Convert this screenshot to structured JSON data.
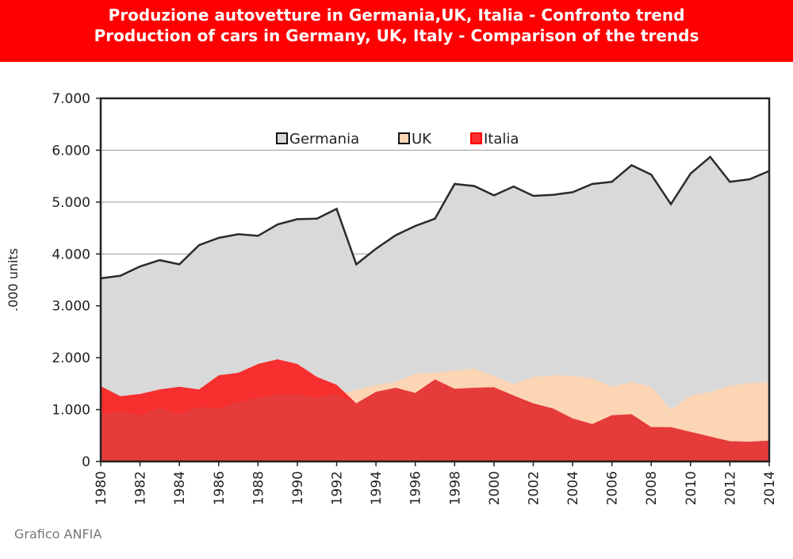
{
  "header": {
    "title_it": "Produzione autovetture in Germania,UK, Italia - Confronto trend",
    "title_en": "Production of cars in Germany, UK, Italy - Comparison of the  trends"
  },
  "footer": {
    "source": "Grafico ANFIA"
  },
  "colors": {
    "banner": "#fe0000",
    "germania": "#d9d9d9",
    "uk": "#fcd5b5",
    "italia": "#f72f2f",
    "italia_overlap": "#e53b3b",
    "line": "#2b2b2b"
  },
  "chart_data": {
    "type": "area",
    "title": "",
    "xlabel": "",
    "ylabel": ".000 units",
    "ylim": [
      0,
      7000
    ],
    "yticks": [
      0,
      1000,
      2000,
      3000,
      4000,
      5000,
      6000,
      7000
    ],
    "ytick_labels": [
      "0",
      "1.000",
      "2.000",
      "3.000",
      "4.000",
      "5.000",
      "6.000",
      "7.000"
    ],
    "xlim": [
      1980,
      2014
    ],
    "xticks": [
      1980,
      1982,
      1984,
      1986,
      1988,
      1990,
      1992,
      1994,
      1996,
      1998,
      2000,
      2002,
      2004,
      2006,
      2008,
      2010,
      2012,
      2014
    ],
    "grid": true,
    "legend_position": "top-center",
    "x": [
      1980,
      1981,
      1982,
      1983,
      1984,
      1985,
      1986,
      1987,
      1988,
      1989,
      1990,
      1991,
      1992,
      1993,
      1994,
      1995,
      1996,
      1997,
      1998,
      1999,
      2000,
      2001,
      2002,
      2003,
      2004,
      2005,
      2006,
      2007,
      2008,
      2009,
      2010,
      2011,
      2012,
      2013,
      2014
    ],
    "series": [
      {
        "name": "Germania",
        "values": [
          3530,
          3580,
          3760,
          3880,
          3800,
          4170,
          4310,
          4380,
          4350,
          4570,
          4670,
          4680,
          4870,
          3800,
          4100,
          4360,
          4540,
          4680,
          5350,
          5310,
          5130,
          5300,
          5120,
          5140,
          5190,
          5350,
          5390,
          5710,
          5530,
          4960,
          5550,
          5870,
          5390,
          5440,
          5600
        ]
      },
      {
        "name": "UK",
        "values": [
          920,
          960,
          890,
          1040,
          910,
          1050,
          1020,
          1140,
          1230,
          1300,
          1300,
          1240,
          1290,
          1380,
          1470,
          1530,
          1690,
          1710,
          1750,
          1790,
          1640,
          1490,
          1630,
          1660,
          1650,
          1600,
          1440,
          1530,
          1440,
          1000,
          1270,
          1340,
          1460,
          1510,
          1530
        ]
      },
      {
        "name": "Italia",
        "values": [
          1450,
          1260,
          1300,
          1390,
          1440,
          1390,
          1660,
          1710,
          1880,
          1970,
          1880,
          1630,
          1480,
          1120,
          1340,
          1420,
          1320,
          1580,
          1400,
          1420,
          1430,
          1270,
          1120,
          1020,
          830,
          720,
          890,
          910,
          660,
          660,
          570,
          480,
          390,
          380,
          400
        ]
      }
    ]
  }
}
